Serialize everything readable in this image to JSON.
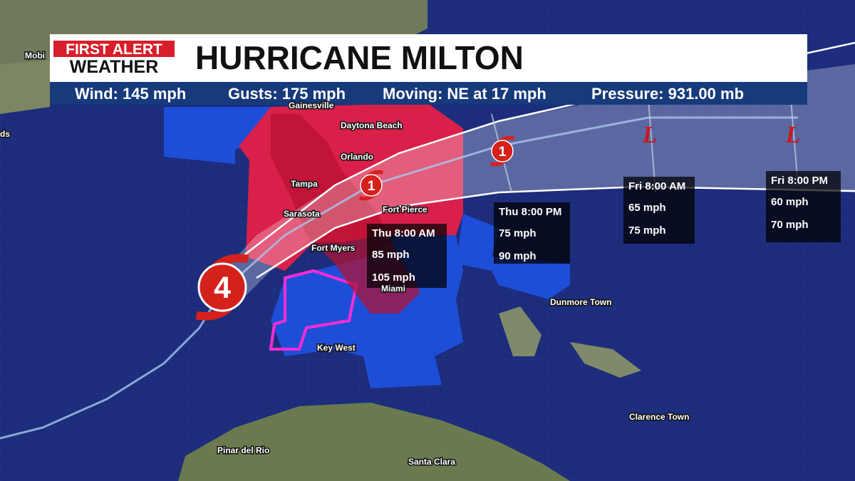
{
  "header": {
    "logo": {
      "line1": "FIRST ALERT",
      "line2": "WEATHER"
    },
    "title": "HURRICANE MILTON",
    "stats": [
      "Wind: 145 mph",
      "Gusts: 175 mph",
      "Moving: NE at 17 mph",
      "Pressure: 931.00 mb"
    ]
  },
  "map": {
    "places": [
      "Mobi",
      "ds",
      "Gainesville",
      "Daytona Beach",
      "Orlando",
      "Tampa",
      "Sarasota",
      "Fort Pierce",
      "Fort Myers",
      "Miami",
      "Key West",
      "Dunmore Town",
      "Clarence Town",
      "Pinar del Rio",
      "Santa Clara"
    ],
    "forecast_points": [
      {
        "time": "Thu 8:00 AM",
        "lines": [
          "85 mph",
          "105 mph"
        ]
      },
      {
        "time": "Thu 8:00 PM",
        "lines": [
          "75 mph",
          "90 mph"
        ]
      },
      {
        "time": "Fri 8:00 AM",
        "lines": [
          "65 mph",
          "75 mph"
        ]
      },
      {
        "time": "Fri 8:00 PM",
        "lines": [
          "60 mph",
          "70 mph"
        ]
      }
    ],
    "storm_markers": [
      {
        "label": "4"
      },
      {
        "label": "1"
      },
      {
        "label": "1"
      },
      {
        "label": "L"
      },
      {
        "label": "L"
      }
    ]
  }
}
